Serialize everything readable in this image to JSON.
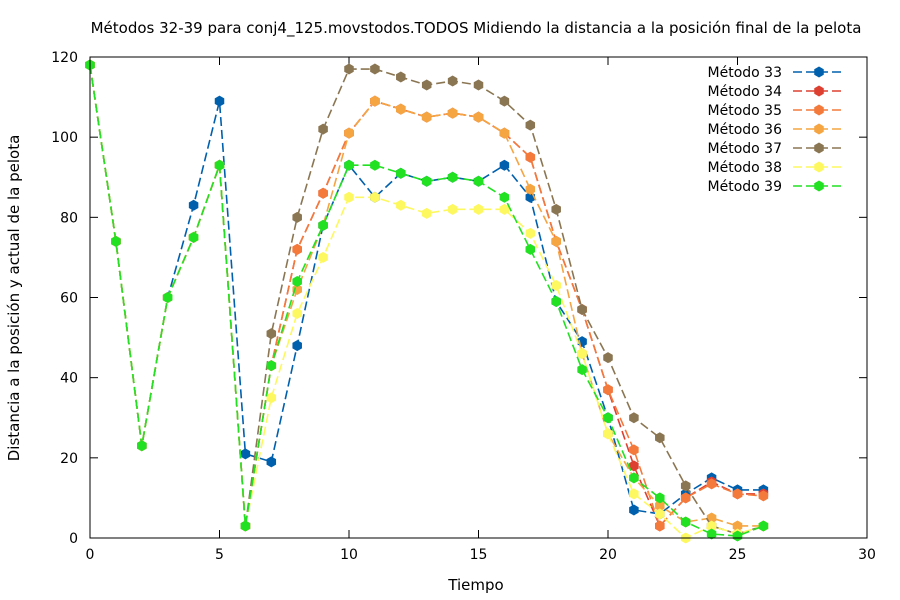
{
  "chart_data": {
    "type": "line",
    "title": "Métodos 32-39 para conj4_125.movstodos.TODOS Midiendo la distancia a la posición final de la pelota",
    "xlabel": "Tiempo",
    "ylabel": "Distancia a la posición y actual de la pelota",
    "xlim": [
      0,
      30
    ],
    "ylim": [
      0,
      120
    ],
    "xticks": [
      "0",
      "5",
      "10",
      "15",
      "20",
      "25",
      "30"
    ],
    "yticks": [
      "0",
      "20",
      "40",
      "60",
      "80",
      "100",
      "120"
    ],
    "legend_position": "top-right",
    "grid": false,
    "x": [
      0,
      1,
      2,
      3,
      4,
      5,
      6,
      7,
      8,
      9,
      10,
      11,
      12,
      13,
      14,
      15,
      16,
      17,
      18,
      19,
      20,
      21,
      22,
      23,
      24,
      25,
      26
    ],
    "series": [
      {
        "name": "Método 33",
        "color": "#0060ad",
        "values": [
          118,
          74,
          23,
          60,
          83,
          109,
          21,
          19,
          48,
          78,
          93,
          85,
          91,
          89,
          90,
          89,
          93,
          85,
          59,
          49,
          30,
          7,
          6,
          11,
          15,
          12,
          12
        ]
      },
      {
        "name": "Método 34",
        "color": "#dd4030",
        "values": [
          118,
          74,
          23,
          60,
          75,
          93,
          3,
          43,
          72,
          86,
          101,
          109,
          107,
          105,
          106,
          105,
          101,
          95,
          74,
          57,
          37,
          18,
          3,
          10,
          14,
          11,
          11
        ]
      },
      {
        "name": "Método 35",
        "color": "#f47a3c",
        "values": [
          118,
          74,
          23,
          60,
          75,
          93,
          3,
          43,
          72,
          86,
          101,
          109,
          107,
          105,
          106,
          105,
          101,
          95,
          74,
          57,
          37,
          22,
          3,
          10,
          13.5,
          11,
          10.5
        ]
      },
      {
        "name": "Método 36",
        "color": "#f5a542",
        "values": [
          118,
          74,
          23,
          60,
          75,
          93,
          3,
          43,
          62,
          78,
          101,
          109,
          107,
          105,
          106,
          105,
          101,
          87,
          74,
          46,
          26,
          15,
          8,
          4,
          5,
          3,
          3
        ]
      },
      {
        "name": "Método 37",
        "color": "#8b7653",
        "values": [
          118,
          74,
          23,
          60,
          75,
          93,
          3,
          51,
          80,
          102,
          117,
          117,
          115,
          113,
          114,
          113,
          109,
          103,
          82,
          57,
          45,
          30,
          25,
          13,
          3,
          1,
          3
        ]
      },
      {
        "name": "Método 38",
        "color": "#fef860",
        "values": [
          118,
          74,
          23,
          60,
          75,
          93,
          3,
          35,
          56,
          70,
          85,
          85,
          83,
          81,
          82,
          82,
          82,
          76,
          63,
          46,
          26,
          11,
          6,
          0,
          3,
          1,
          3
        ]
      },
      {
        "name": "Método 39",
        "color": "#22e022",
        "values": [
          118,
          74,
          23,
          60,
          75,
          93,
          3,
          43,
          64,
          78,
          93,
          93,
          91,
          89,
          90,
          89,
          85,
          72,
          59,
          42,
          30,
          15,
          10,
          4,
          1,
          0.5,
          3
        ]
      }
    ]
  }
}
